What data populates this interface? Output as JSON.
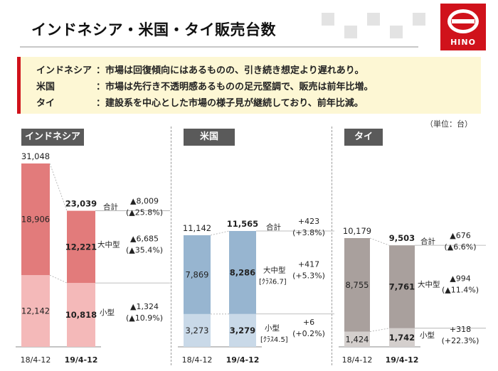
{
  "title": "インドネシア・米国・タイ販売台数",
  "logo_text": "HINO",
  "summary": [
    {
      "country": "インドネシア",
      "text": "：市場は回復傾向にはあるものの、引き続き想定より遅れあり。"
    },
    {
      "country": "米国",
      "text": "：市場は先行き不透明感あるものの足元堅調で、販売は前年比増。"
    },
    {
      "country": "タイ",
      "text": "：建設系を中心とした市場の様子見が継続しており、前年比減。"
    }
  ],
  "unit": "（単位：台）",
  "colors": {
    "accent": "#d0121b",
    "summary_bg": "#fdf7d4",
    "header_bg": "#5a5a5a",
    "indonesia_large": "#e27b7b",
    "indonesia_small": "#f4b9b9",
    "us_large": "#97b5d0",
    "us_small": "#c9d9e8",
    "thai_large": "#a9a09d",
    "thai_small": "#d4cfcd"
  },
  "chart_data": [
    {
      "type": "bar",
      "stacked": true,
      "header": "インドネシア",
      "categories": [
        "18/4-12",
        "19/4-12"
      ],
      "series": [
        {
          "name": "小型",
          "values": [
            12142,
            10818
          ],
          "labels": [
            "12,142",
            "10,818"
          ]
        },
        {
          "name": "大中型",
          "values": [
            18906,
            12221
          ],
          "labels": [
            "18,906",
            "12,221"
          ]
        }
      ],
      "totals": [
        31048,
        23039
      ],
      "total_labels": [
        "31,048",
        "23,039"
      ],
      "total_name": "合計",
      "changes": [
        {
          "series": "合計",
          "amount": "▲8,009",
          "percent": "(▲25.8%)"
        },
        {
          "series": "大中型",
          "amount": "▲6,685",
          "percent": "(▲35.4%)"
        },
        {
          "series": "小型",
          "amount": "▲1,324",
          "percent": "(▲10.9%)"
        }
      ],
      "ylim": [
        0,
        31048
      ]
    },
    {
      "type": "bar",
      "stacked": true,
      "header": "米国",
      "categories": [
        "18/4-12",
        "19/4-12"
      ],
      "series": [
        {
          "name": "小型",
          "sublabel": "[ｸﾗｽ4.5]",
          "values": [
            3273,
            3279
          ],
          "labels": [
            "3,273",
            "3,279"
          ]
        },
        {
          "name": "大中型",
          "sublabel": "[ｸﾗｽ6.7]",
          "values": [
            7869,
            8286
          ],
          "labels": [
            "7,869",
            "8,286"
          ]
        }
      ],
      "totals": [
        11142,
        11565
      ],
      "total_labels": [
        "11,142",
        "11,565"
      ],
      "total_name": "合計",
      "changes": [
        {
          "series": "合計",
          "amount": "+423",
          "percent": "(+3.8%)"
        },
        {
          "series": "大中型",
          "amount": "+417",
          "percent": "(+5.3%)"
        },
        {
          "series": "小型",
          "amount": "+6",
          "percent": "(+0.2%)"
        }
      ],
      "ylim": [
        0,
        11565
      ]
    },
    {
      "type": "bar",
      "stacked": true,
      "header": "タイ",
      "categories": [
        "18/4-12",
        "19/4-12"
      ],
      "series": [
        {
          "name": "小型",
          "values": [
            1424,
            1742
          ],
          "labels": [
            "1,424",
            "1,742"
          ]
        },
        {
          "name": "大中型",
          "values": [
            8755,
            7761
          ],
          "labels": [
            "8,755",
            "7,761"
          ]
        }
      ],
      "totals": [
        10179,
        9503
      ],
      "total_labels": [
        "10,179",
        "9,503"
      ],
      "total_name": "合計",
      "changes": [
        {
          "series": "合計",
          "amount": "▲676",
          "percent": "(▲6.6%)"
        },
        {
          "series": "大中型",
          "amount": "▲994",
          "percent": "(▲11.4%)"
        },
        {
          "series": "小型",
          "amount": "+318",
          "percent": "(+22.3%)"
        }
      ],
      "ylim": [
        0,
        10179
      ]
    }
  ]
}
